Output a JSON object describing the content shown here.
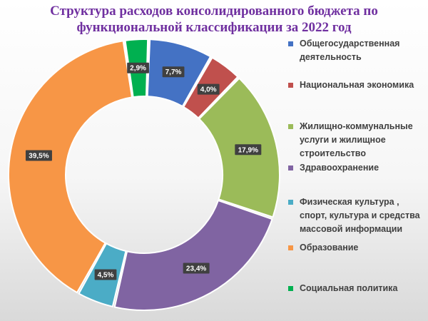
{
  "chart_data": {
    "type": "pie",
    "title": [
      "Структура расходов консолидированного бюджета по",
      "функциональной классификации  за  2022 год"
    ],
    "categories": [
      "Общегосударственная деятельность",
      "Национальная экономика",
      "Жилищно-коммунальные услуги и жилищное строительство",
      "Здравоохранение",
      "Физическая культура , спорт, культура и средства массовой информации",
      "Образование",
      "Социальная политика"
    ],
    "values": [
      7.7,
      4.0,
      17.9,
      23.4,
      4.5,
      39.5,
      2.9
    ],
    "data_labels": [
      "7,7%",
      "4,0%",
      "17,9%",
      "23,4%",
      "4,5%",
      "39,5%",
      "2,9%"
    ],
    "colors": [
      "#4472c4",
      "#c0504d",
      "#9bbb59",
      "#8064a2",
      "#4bacc6",
      "#f79646",
      "#00b050"
    ],
    "legend": {
      "position": "right",
      "entries": [
        "Общегосударственная\nдеятельность",
        "Национальная экономика",
        "Жилищно-коммунальные\nуслуги и жилищное\nстроительство",
        "Здравоохранение",
        "Физическая культура ,\nспорт, культура и средства\nмассовой информации",
        "Образование",
        "Социальная политика"
      ]
    },
    "inner_style": "donut"
  }
}
